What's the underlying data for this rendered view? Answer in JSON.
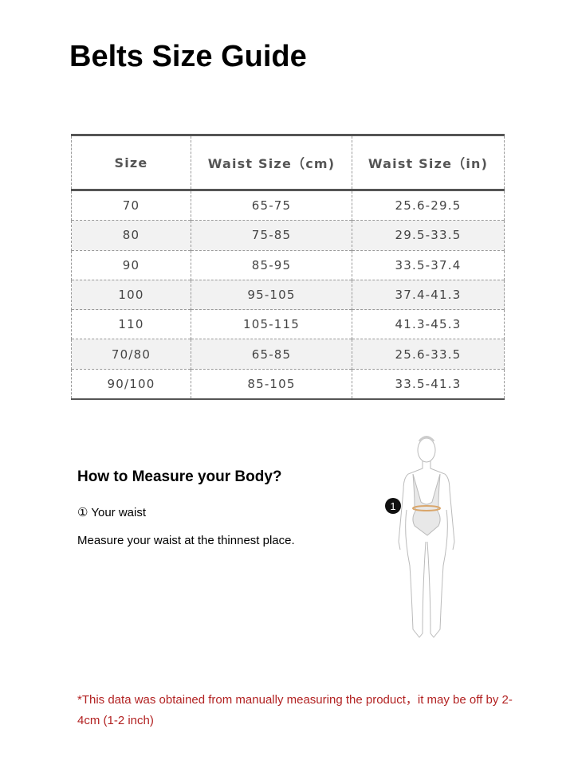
{
  "title": "Belts Size Guide",
  "table": {
    "headers": [
      "Size",
      "Waist Size（cm)",
      "Waist Size（in)"
    ],
    "rows": [
      [
        "70",
        "65-75",
        "25.6-29.5"
      ],
      [
        "80",
        "75-85",
        "29.5-33.5"
      ],
      [
        "90",
        "85-95",
        "33.5-37.4"
      ],
      [
        "100",
        "95-105",
        "37.4-41.3"
      ],
      [
        "110",
        "105-115",
        "41.3-45.3"
      ],
      [
        "70/80",
        "65-85",
        "25.6-33.5"
      ],
      [
        "90/100",
        "85-105",
        "33.5-41.3"
      ]
    ]
  },
  "measure": {
    "heading": "How to Measure your Body?",
    "step": "① Your waist",
    "instruction": "Measure your waist at the thinnest place.",
    "marker": "1"
  },
  "note": "*This data was obtained from manually measuring the product，it may be off by 2-4cm (1-2 inch)",
  "colors": {
    "note": "#b22222",
    "waist_band": "#d9a66b",
    "row_alt": "#f2f2f2"
  }
}
